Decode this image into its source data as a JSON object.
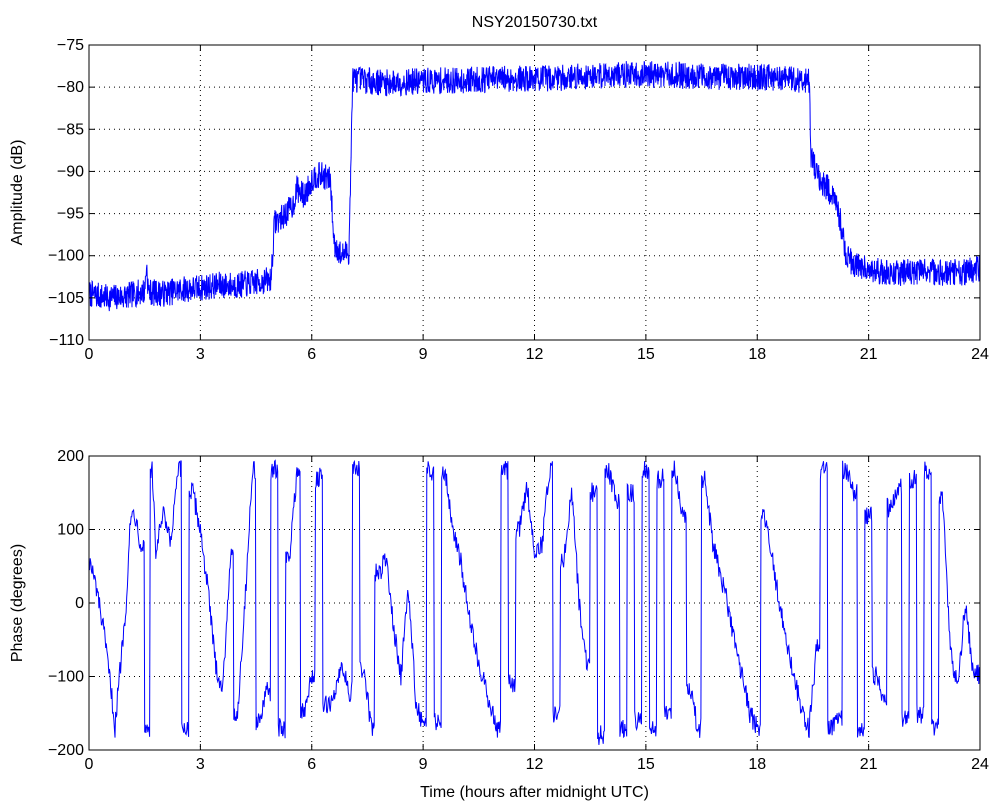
{
  "chart_data": [
    {
      "type": "line",
      "title": "NSY20150730.txt",
      "xlabel": "",
      "ylabel": "Amplitude (dB)",
      "xlim": [
        0,
        24
      ],
      "ylim": [
        -110,
        -75
      ],
      "xticks": [
        0,
        3,
        6,
        9,
        12,
        15,
        18,
        21,
        24
      ],
      "yticks": [
        -110,
        -105,
        -100,
        -95,
        -90,
        -85,
        -80,
        -75
      ],
      "xtick_labels": [
        "0",
        "3",
        "6",
        "9",
        "12",
        "15",
        "18",
        "21",
        "24"
      ],
      "ytick_labels": [
        "−110",
        "−105",
        "−100",
        "−95",
        "−90",
        "−85",
        "−80",
        "−75"
      ],
      "grid": true,
      "color": "#0000ff",
      "series": [
        {
          "x": [
            0,
            0.5,
            1.0,
            1.5,
            1.55,
            1.6,
            2.0,
            2.5,
            3.0,
            3.5,
            4.0,
            4.5,
            4.9,
            5.0,
            5.2,
            5.5,
            5.6,
            5.8,
            6.0,
            6.1,
            6.3,
            6.5,
            6.6,
            6.8,
            7.0,
            7.05,
            7.1,
            8,
            9,
            10,
            11,
            12,
            13,
            14,
            15,
            16,
            17,
            18,
            19,
            19.4,
            19.45,
            19.6,
            19.9,
            20.2,
            20.4,
            20.6,
            21.0,
            21.5,
            22.0,
            22.5,
            23.0,
            23.5,
            24.0
          ],
          "y": [
            -104.5,
            -105,
            -104.8,
            -104.2,
            -101,
            -104.3,
            -104.5,
            -104.0,
            -103.8,
            -103.5,
            -103.5,
            -103.2,
            -102.8,
            -96,
            -95.5,
            -94,
            -92,
            -93,
            -91,
            -90.5,
            -90.5,
            -91,
            -98.5,
            -100,
            -99.5,
            -90,
            -79,
            -79.5,
            -79.3,
            -79.2,
            -79.0,
            -79.0,
            -78.8,
            -78.5,
            -78.5,
            -78.6,
            -78.8,
            -78.8,
            -79.0,
            -79.2,
            -88,
            -90.5,
            -92,
            -95,
            -100,
            -101,
            -101.5,
            -102,
            -102,
            -101.8,
            -102,
            -102,
            -101.5
          ]
        }
      ]
    },
    {
      "type": "line",
      "title": "",
      "xlabel": "Time (hours after midnight UTC)",
      "ylabel": "Phase (degrees)",
      "xlim": [
        0,
        24
      ],
      "ylim": [
        -200,
        200
      ],
      "xticks": [
        0,
        3,
        6,
        9,
        12,
        15,
        18,
        21,
        24
      ],
      "yticks": [
        -200,
        -100,
        0,
        100,
        200
      ],
      "xtick_labels": [
        "0",
        "3",
        "6",
        "9",
        "12",
        "15",
        "18",
        "21",
        "24"
      ],
      "ytick_labels": [
        "−200",
        "−100",
        "0",
        "100",
        "200"
      ],
      "grid": true,
      "color": "#0000ff",
      "series": [
        {
          "x": [
            0,
            0.2,
            0.4,
            0.6,
            0.7,
            0.8,
            1.0,
            1.1,
            1.2,
            1.4,
            1.6,
            1.7,
            1.8,
            2.0,
            2.2,
            2.4,
            2.6,
            2.8,
            3.0,
            3.2,
            3.4,
            3.6,
            3.8,
            4.0,
            4.2,
            4.4,
            4.6,
            4.8,
            5.0,
            5.2,
            5.4,
            5.6,
            5.8,
            6.0,
            6.2,
            6.4,
            6.6,
            6.8,
            7.0,
            7.2,
            7.4,
            7.6,
            7.8,
            8.0,
            8.2,
            8.4,
            8.6,
            8.8,
            9.0,
            9.2,
            9.4,
            9.6,
            9.8,
            10.0,
            10.2,
            10.4,
            10.6,
            10.8,
            11.0,
            11.2,
            11.4,
            11.6,
            11.8,
            12.0,
            12.2,
            12.4,
            12.6,
            12.8,
            13.0,
            13.2,
            13.4,
            13.6,
            13.8,
            14.0,
            14.2,
            14.4,
            14.6,
            14.8,
            15.0,
            15.2,
            15.4,
            15.6,
            15.8,
            16.0,
            16.2,
            16.4,
            16.6,
            16.8,
            17.0,
            17.2,
            17.4,
            17.6,
            17.8,
            18.0,
            18.2,
            18.4,
            18.6,
            18.8,
            19.0,
            19.2,
            19.4,
            19.6,
            19.8,
            20.0,
            20.2,
            20.4,
            20.6,
            20.8,
            21.0,
            21.2,
            21.4,
            21.6,
            21.8,
            22.0,
            22.2,
            22.4,
            22.6,
            22.8,
            23.0,
            23.2,
            23.4,
            23.6,
            23.8,
            24.0
          ],
          "y": [
            60,
            20,
            -40,
            -120,
            -170,
            -110,
            0,
            100,
            130,
            80,
            -170,
            180,
            70,
            120,
            80,
            180,
            -170,
            150,
            100,
            20,
            -80,
            -120,
            60,
            -150,
            0,
            180,
            -160,
            -120,
            180,
            -170,
            60,
            180,
            -150,
            -100,
            170,
            -140,
            -130,
            -80,
            -120,
            180,
            -90,
            -170,
            40,
            60,
            -30,
            -100,
            20,
            -130,
            -170,
            180,
            -160,
            180,
            100,
            60,
            0,
            -60,
            -100,
            -140,
            -170,
            180,
            -110,
            100,
            160,
            70,
            80,
            180,
            -150,
            60,
            160,
            0,
            -80,
            150,
            -180,
            180,
            140,
            -170,
            150,
            -160,
            180,
            -170,
            170,
            -150,
            180,
            120,
            -120,
            -170,
            170,
            80,
            40,
            0,
            -60,
            -100,
            -150,
            -170,
            120,
            60,
            0,
            -60,
            -100,
            -150,
            -170,
            -60,
            180,
            -170,
            -160,
            180,
            150,
            -170,
            120,
            -100,
            -130,
            130,
            160,
            -160,
            170,
            -150,
            180,
            -170,
            140,
            -60,
            -120,
            0,
            -90,
            -100
          ]
        }
      ]
    }
  ]
}
